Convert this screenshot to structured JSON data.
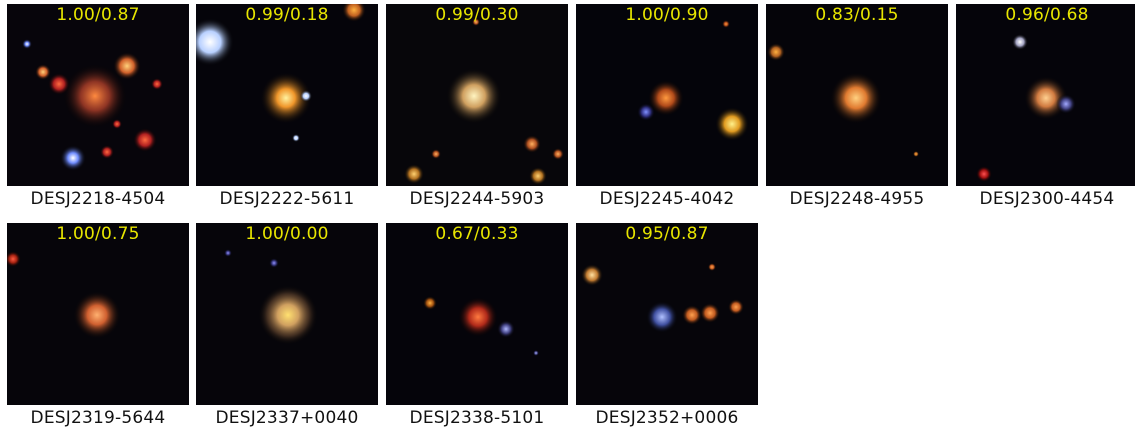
{
  "colors": {
    "score_text": "#e8e600",
    "name_text": "#111111",
    "sky": "#050308"
  },
  "cutouts": [
    {
      "name": "DESJ2218-4504",
      "score": "1.00/0.87"
    },
    {
      "name": "DESJ2222-5611",
      "score": "0.99/0.18"
    },
    {
      "name": "DESJ2244-5903",
      "score": "0.99/0.30"
    },
    {
      "name": "DESJ2245-4042",
      "score": "1.00/0.90"
    },
    {
      "name": "DESJ2248-4955",
      "score": "0.83/0.15"
    },
    {
      "name": "DESJ2300-4454",
      "score": "0.96/0.68"
    },
    {
      "name": "DESJ2319-5644",
      "score": "1.00/0.75"
    },
    {
      "name": "DESJ2337+0040",
      "score": "1.00/0.00"
    },
    {
      "name": "DESJ2338-5101",
      "score": "0.67/0.33"
    },
    {
      "name": "DESJ2352+0006",
      "score": "0.95/0.87"
    }
  ]
}
